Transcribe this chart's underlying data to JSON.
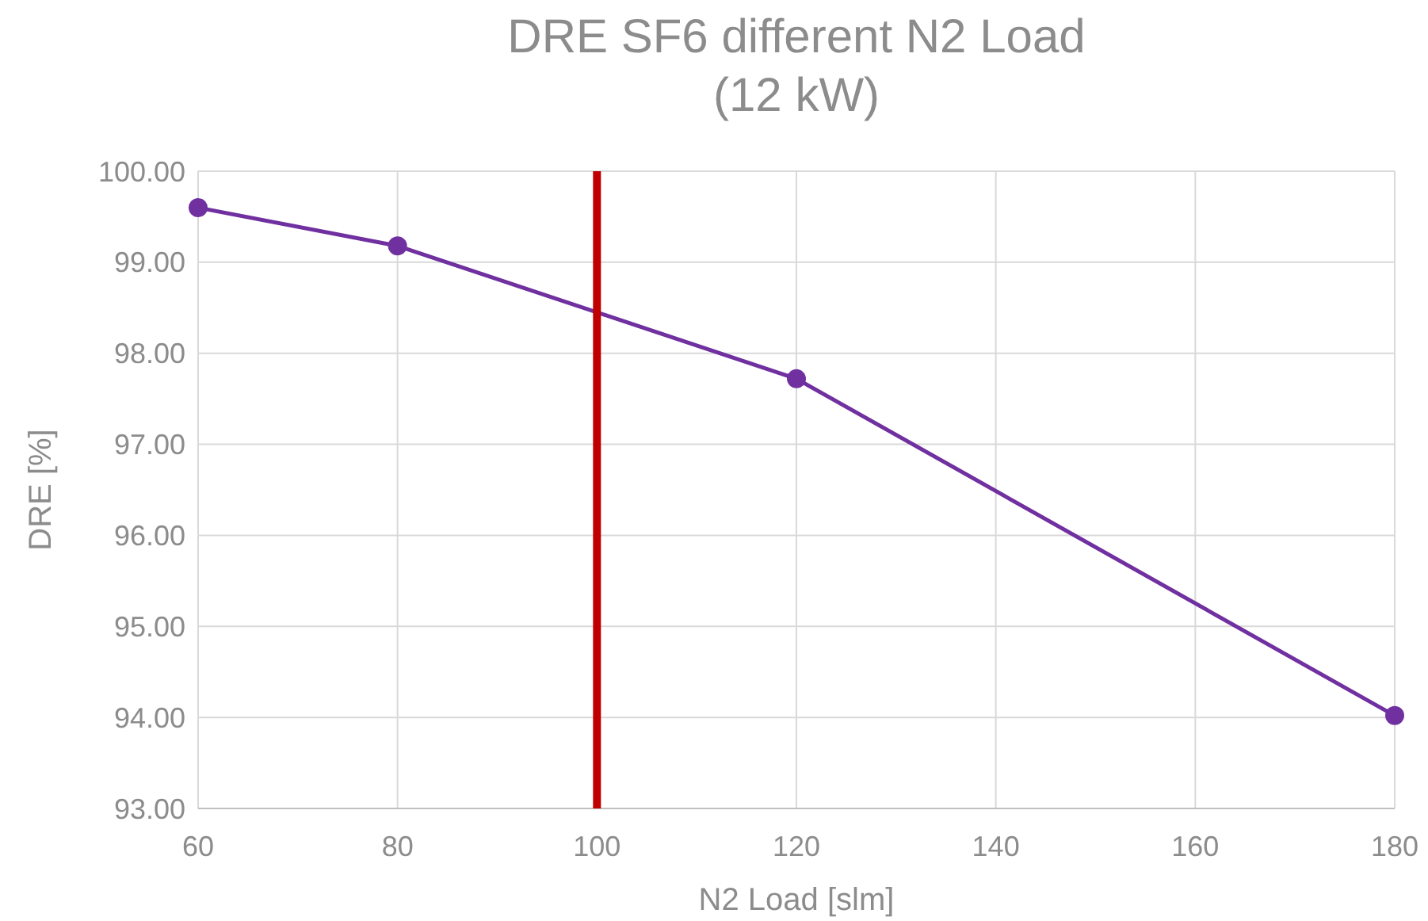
{
  "chart_data": {
    "type": "line",
    "title": "DRE SF6 different N2 Load\n(12 kW)",
    "xlabel": "N2 Load [slm]",
    "ylabel": "DRE [%]",
    "x": [
      60,
      80,
      120,
      180
    ],
    "series": [
      {
        "color": "#7030a0",
        "values": [
          99.6,
          99.18,
          97.72,
          94.02
        ]
      }
    ],
    "xlim": [
      60,
      180
    ],
    "xticks": [
      60,
      80,
      100,
      120,
      140,
      160,
      180
    ],
    "ylim": [
      93,
      100
    ],
    "yticks": [
      {
        "value": 93,
        "label": "93.00"
      },
      {
        "value": 94,
        "label": "94.00"
      },
      {
        "value": 95,
        "label": "95.00"
      },
      {
        "value": 96,
        "label": "96.00"
      },
      {
        "value": 97,
        "label": "97.00"
      },
      {
        "value": 98,
        "label": "98.00"
      },
      {
        "value": 99,
        "label": "99.00"
      },
      {
        "value": 100,
        "label": "100.00"
      }
    ],
    "ref_lines": [
      {
        "axis": "x",
        "value": 100,
        "color": "#c00000"
      }
    ],
    "grid": true,
    "marker": "circle",
    "line_style": "solid"
  }
}
